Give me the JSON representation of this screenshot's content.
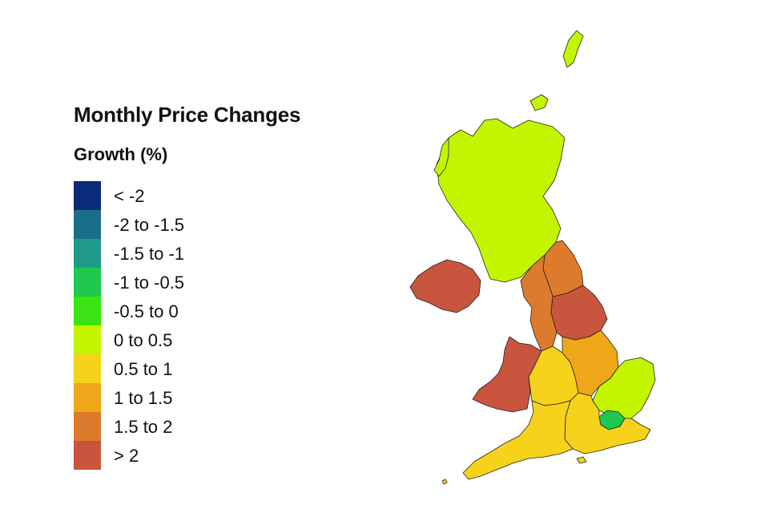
{
  "legend": {
    "title": "Monthly Price Changes",
    "subtitle": "Growth (%)",
    "items": [
      {
        "label": "< -2",
        "color": "#0a2b7a"
      },
      {
        "label": "-2 to -1.5",
        "color": "#1a6e8a"
      },
      {
        "label": "-1.5 to -1",
        "color": "#1f9a88"
      },
      {
        "label": "-1 to -0.5",
        "color": "#1ec94e"
      },
      {
        "label": "-0.5 to 0",
        "color": "#3ae312"
      },
      {
        "label": "0 to 0.5",
        "color": "#c3f500"
      },
      {
        "label": "0.5 to 1",
        "color": "#f7d21a"
      },
      {
        "label": "1 to 1.5",
        "color": "#eda718"
      },
      {
        "label": "1.5 to 2",
        "color": "#dd7a2c"
      },
      {
        "label": "> 2",
        "color": "#c9553e"
      }
    ]
  },
  "regions": [
    {
      "name": "Scotland",
      "band": "0 to 0.5",
      "color": "#c3f500"
    },
    {
      "name": "Northern Ireland",
      "band": "> 2",
      "color": "#c9553e"
    },
    {
      "name": "North East",
      "band": "1.5 to 2",
      "color": "#dd7a2c"
    },
    {
      "name": "North West",
      "band": "1.5 to 2",
      "color": "#dd7a2c"
    },
    {
      "name": "Yorkshire and The Humber",
      "band": "> 2",
      "color": "#c9553e"
    },
    {
      "name": "Wales",
      "band": "> 2",
      "color": "#c9553e"
    },
    {
      "name": "West Midlands",
      "band": "0.5 to 1",
      "color": "#f7d21a"
    },
    {
      "name": "East Midlands",
      "band": "1 to 1.5",
      "color": "#eda718"
    },
    {
      "name": "East of England",
      "band": "0 to 0.5",
      "color": "#c3f500"
    },
    {
      "name": "London",
      "band": "-1 to -0.5",
      "color": "#1ec94e"
    },
    {
      "name": "South East",
      "band": "0.5 to 1",
      "color": "#f7d21a"
    },
    {
      "name": "South West",
      "band": "0.5 to 1",
      "color": "#f7d21a"
    }
  ]
}
